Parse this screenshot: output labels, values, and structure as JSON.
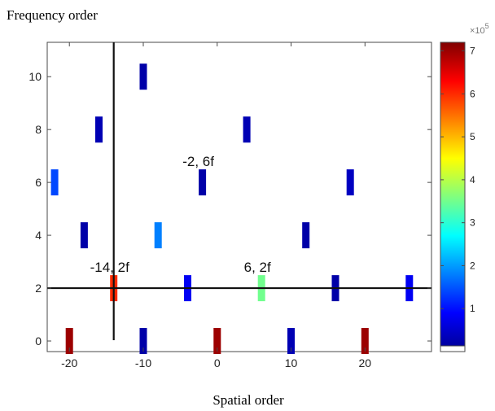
{
  "chart_data": {
    "type": "scatter",
    "title": "",
    "xlabel": "Spatial order",
    "ylabel": "Frequency order",
    "xlim": [
      -23,
      29
    ],
    "ylim": [
      -0.4,
      11.3
    ],
    "xticks": [
      -20,
      -10,
      0,
      10,
      20
    ],
    "yticks": [
      0,
      2,
      4,
      6,
      8,
      10
    ],
    "grid": false,
    "reference_lines": {
      "vertical_x": -14,
      "horizontal_y": 2
    },
    "points": [
      {
        "x": -20,
        "y": 0,
        "value": 7.0
      },
      {
        "x": -10,
        "y": 0,
        "value": 0.2
      },
      {
        "x": 0,
        "y": 0,
        "value": 7.0
      },
      {
        "x": 10,
        "y": 0,
        "value": 0.3
      },
      {
        "x": 20,
        "y": 0,
        "value": 7.0
      },
      {
        "x": -14,
        "y": 2,
        "value": 6.0
      },
      {
        "x": -4,
        "y": 2,
        "value": 0.8
      },
      {
        "x": 6,
        "y": 2,
        "value": 3.5
      },
      {
        "x": 16,
        "y": 2,
        "value": 0.2
      },
      {
        "x": 26,
        "y": 2,
        "value": 0.8
      },
      {
        "x": -18,
        "y": 4,
        "value": 0.2
      },
      {
        "x": -8,
        "y": 4,
        "value": 1.8
      },
      {
        "x": 12,
        "y": 4,
        "value": 0.2
      },
      {
        "x": -22,
        "y": 6,
        "value": 1.4
      },
      {
        "x": -2,
        "y": 6,
        "value": 0.2
      },
      {
        "x": 18,
        "y": 6,
        "value": 0.4
      },
      {
        "x": -16,
        "y": 8,
        "value": 0.3
      },
      {
        "x": 4,
        "y": 8,
        "value": 0.3
      },
      {
        "x": -10,
        "y": 10,
        "value": 0.2
      }
    ],
    "annotations": [
      {
        "text": "-2, 6f",
        "x": -2,
        "y": 6
      },
      {
        "text": "-14, 2f",
        "x": -14,
        "y": 2
      },
      {
        "text": "6, 2f",
        "x": 6,
        "y": 2
      }
    ],
    "colorbar": {
      "colormap": "jet",
      "range": [
        0,
        7.2
      ],
      "ticks": [
        1,
        2,
        3,
        4,
        5,
        6,
        7
      ],
      "multiplier_base": "×10",
      "multiplier_exp": "5"
    }
  }
}
